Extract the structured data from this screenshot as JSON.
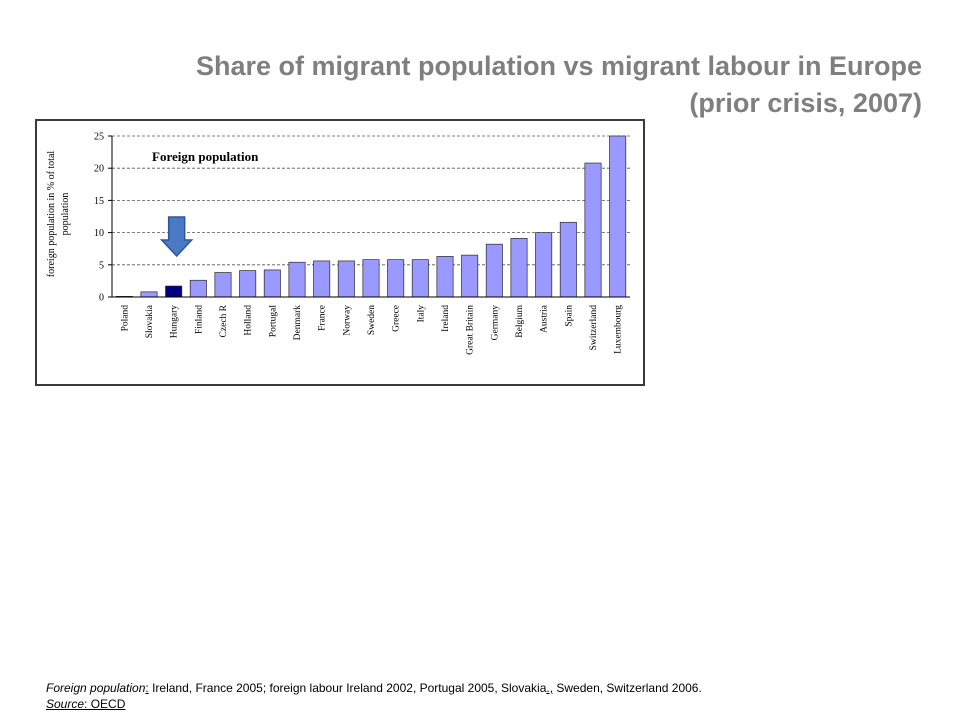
{
  "slide": {
    "title_line1": "Share of migrant population vs migrant labour in Europe",
    "title_line2": "(prior crisis, 2007)"
  },
  "chart_data": {
    "type": "bar",
    "title": "Foreign population",
    "ylabel_line1": "foreign population in % of total",
    "ylabel_line2": "population",
    "xlabel": "",
    "ylim": [
      0,
      25
    ],
    "yticks": [
      0,
      5,
      10,
      15,
      20,
      25
    ],
    "grid": true,
    "categories": [
      "Poland",
      "Slovakia",
      "Hungary",
      "Finland",
      "Czech R",
      "Holland",
      "Portugal",
      "Denmark",
      "France",
      "Norway",
      "Sweden",
      "Greece",
      "Italy",
      "Ireland",
      "Great Britain",
      "Germany",
      "Belgium",
      "Austria",
      "Spain",
      "Switzerland",
      "Luxembourg"
    ],
    "values": [
      0.1,
      0.8,
      1.7,
      2.6,
      3.8,
      4.1,
      4.2,
      5.4,
      5.6,
      5.6,
      5.8,
      5.8,
      5.8,
      6.3,
      6.5,
      8.2,
      9.1,
      10.0,
      11.6,
      20.8,
      25.5
    ],
    "highlight": "Hungary",
    "colors": {
      "bar": "#9999ff",
      "bar_highlight": "#000080",
      "bar_stroke": "#2a2a2a",
      "arrow_fill": "#4a7ac4",
      "arrow_stroke": "#2f5597"
    }
  },
  "footnote": {
    "p1": "Foreign population",
    "p2": ":",
    "p3": " Ireland, France 2005",
    "p4": ";",
    "p5": " foreign labour Ireland 2002, Portugal 2005, Slovakia",
    "p6": ".,",
    "p7": " Sweden, Switzerland 2006.",
    "source_label": "Source",
    "source_value": ": OECD"
  }
}
